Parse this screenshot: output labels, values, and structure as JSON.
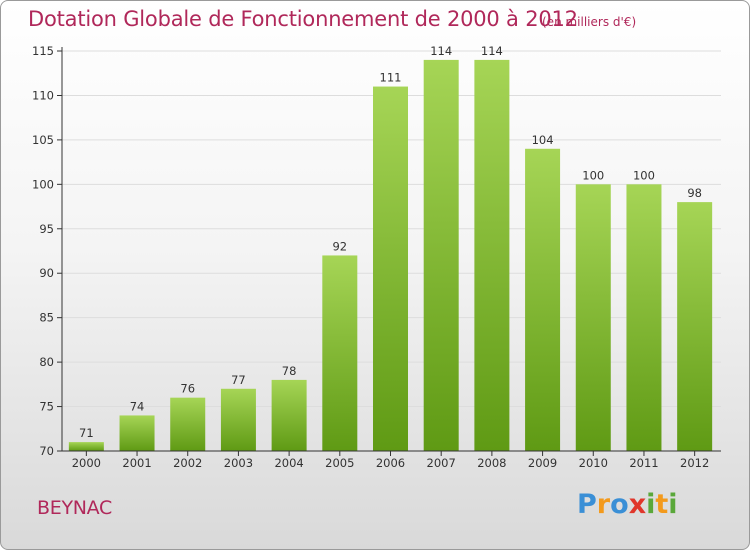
{
  "title": "Dotation Globale de Fonctionnement de 2000 à 2012",
  "subtitle": "(en milliers d'€)",
  "commune": "BEYNAC",
  "logo": {
    "text": "Proxiti",
    "letters": [
      "P",
      "r",
      "o",
      "x",
      "i",
      "t",
      "i"
    ],
    "colors": [
      "#3a8fd6",
      "#f39a1c",
      "#3a8fd6",
      "#e0362b",
      "#5aa83a",
      "#f39a1c",
      "#5aa83a"
    ]
  },
  "colors": {
    "bar_top": "#a6d556",
    "bar_bottom": "#5f9a14",
    "accent": "#b0285a",
    "grid": "#dddddd",
    "axis": "#333333"
  },
  "chart_data": {
    "type": "bar",
    "categories": [
      "2000",
      "2001",
      "2002",
      "2003",
      "2004",
      "2005",
      "2006",
      "2007",
      "2008",
      "2009",
      "2010",
      "2011",
      "2012"
    ],
    "values": [
      71,
      74,
      76,
      77,
      78,
      92,
      111,
      114,
      114,
      104,
      100,
      100,
      98
    ],
    "data_labels": [
      "71",
      "74",
      "76",
      "77",
      "78",
      "92",
      "111",
      "114",
      "114",
      "104",
      "100",
      "100",
      "98"
    ],
    "yticks": [
      "70",
      "75",
      "80",
      "85",
      "90",
      "95",
      "100",
      "105",
      "110",
      "115"
    ],
    "ylim": [
      70,
      115
    ],
    "grid": true,
    "legend": "none"
  }
}
